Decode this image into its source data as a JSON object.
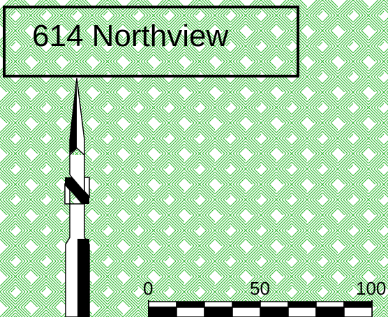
{
  "map": {
    "parcel_label": "614 Northview",
    "fill_color": "#2db82d",
    "background_color": "#ffffff"
  },
  "scale_bar": {
    "ticks": [
      "0",
      "50",
      "100"
    ],
    "segments": 8
  },
  "north_arrow": {
    "icon": "north-arrow-icon",
    "letter_shape": "N"
  }
}
